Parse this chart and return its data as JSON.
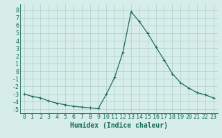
{
  "title": "",
  "xlabel": "Humidex (Indice chaleur)",
  "ylabel": "",
  "x": [
    0,
    1,
    2,
    3,
    4,
    5,
    6,
    7,
    8,
    9,
    10,
    11,
    12,
    13,
    14,
    15,
    16,
    17,
    18,
    19,
    20,
    21,
    22,
    23
  ],
  "y": [
    -3.0,
    -3.3,
    -3.5,
    -3.9,
    -4.2,
    -4.4,
    -4.6,
    -4.7,
    -4.8,
    -4.9,
    -3.0,
    -0.8,
    2.5,
    7.8,
    6.5,
    5.0,
    3.2,
    1.5,
    -0.3,
    -1.5,
    -2.2,
    -2.8,
    -3.1,
    -3.5
  ],
  "line_color": "#1a6b5a",
  "marker": "+",
  "marker_size": 3.5,
  "linewidth": 0.9,
  "ylim": [
    -5.5,
    8.8
  ],
  "xlim": [
    -0.5,
    23.5
  ],
  "yticks": [
    8,
    7,
    6,
    5,
    4,
    3,
    2,
    1,
    0,
    -1,
    -2,
    -3,
    -4,
    -5
  ],
  "xticks": [
    0,
    1,
    2,
    3,
    4,
    5,
    6,
    7,
    8,
    9,
    10,
    11,
    12,
    13,
    14,
    15,
    16,
    17,
    18,
    19,
    20,
    21,
    22,
    23
  ],
  "bg_color": "#d6edea",
  "grid_color": "#b0ceca",
  "tick_label_color": "#1a6b5a",
  "xlabel_color": "#1a6b5a",
  "xlabel_fontsize": 7,
  "tick_fontsize": 6
}
